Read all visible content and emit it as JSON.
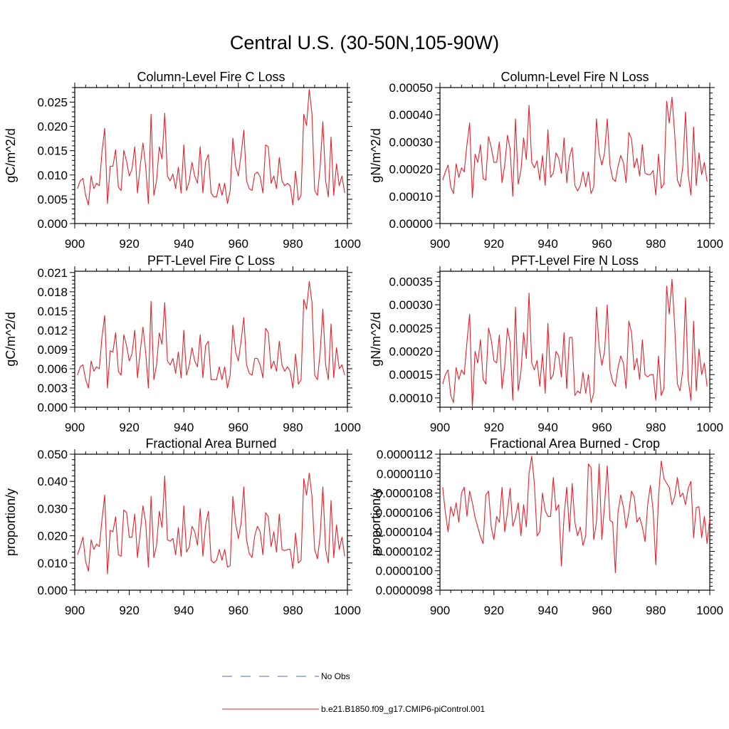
{
  "title": "Central U.S. (30-50N,105-90W)",
  "legend": {
    "entries": [
      {
        "label": "No Obs",
        "color": "#5a6fb3",
        "style": "dashed"
      },
      {
        "label": "b.e21.B1850.f09_g17.CMIP6-piControl.001",
        "color": "#e8202a",
        "style": "solid"
      }
    ]
  },
  "colors": {
    "series": "#e8202a",
    "axis": "#000000"
  },
  "chart_data": [
    {
      "type": "line",
      "title": "Column-Level Fire C Loss",
      "ylabel": "gC/m^2/d",
      "xlim": [
        900,
        1000
      ],
      "ylim": [
        0,
        0.028
      ],
      "xticks": [
        "900",
        "920",
        "940",
        "960",
        "980",
        "1000"
      ],
      "yticks": [
        {
          "v": 0.0,
          "label": "0.000"
        },
        {
          "v": 0.005,
          "label": "0.005"
        },
        {
          "v": 0.01,
          "label": "0.010"
        },
        {
          "v": 0.015,
          "label": "0.015"
        },
        {
          "v": 0.02,
          "label": "0.020"
        },
        {
          "v": 0.025,
          "label": "0.025"
        }
      ],
      "x_start": 901,
      "values": [
        0.0072,
        0.0088,
        0.0093,
        0.0058,
        0.0038,
        0.0098,
        0.0072,
        0.0083,
        0.0078,
        0.0148,
        0.0196,
        0.0041,
        0.0118,
        0.0118,
        0.0152,
        0.0075,
        0.0068,
        0.0151,
        0.0128,
        0.0098,
        0.0112,
        0.0158,
        0.0063,
        0.0118,
        0.0166,
        0.0118,
        0.0041,
        0.0225,
        0.0058,
        0.0088,
        0.0158,
        0.0133,
        0.0227,
        0.0098,
        0.0088,
        0.0102,
        0.0072,
        0.0116,
        0.0063,
        0.0162,
        0.0068,
        0.0088,
        0.0126,
        0.0098,
        0.0083,
        0.0158,
        0.0063,
        0.0128,
        0.0142,
        0.0063,
        0.0055,
        0.0055,
        0.0083,
        0.0058,
        0.0083,
        0.0041,
        0.0068,
        0.0176,
        0.0118,
        0.0098,
        0.0142,
        0.0192,
        0.0088,
        0.0072,
        0.0068,
        0.0102,
        0.0106,
        0.0096,
        0.0063,
        0.0162,
        0.0158,
        0.0083,
        0.0098,
        0.0072,
        0.0136,
        0.0088,
        0.0078,
        0.0083,
        0.0078,
        0.0038,
        0.0108,
        0.0048,
        0.0058,
        0.0225,
        0.0202,
        0.0276,
        0.0226,
        0.0068,
        0.0058,
        0.0118,
        0.021,
        0.0088,
        0.0055,
        0.0178,
        0.0058,
        0.0123,
        0.0078,
        0.0098,
        0.0063
      ]
    },
    {
      "type": "line",
      "title": "Column-Level Fire N Loss",
      "ylabel": "gN/m^2/d",
      "xlim": [
        900,
        1000
      ],
      "ylim": [
        0,
        0.0005
      ],
      "xticks": [
        "900",
        "920",
        "940",
        "960",
        "980",
        "1000"
      ],
      "yticks": [
        {
          "v": 0.0,
          "label": "0.00000"
        },
        {
          "v": 0.0001,
          "label": "0.00010"
        },
        {
          "v": 0.0002,
          "label": "0.00020"
        },
        {
          "v": 0.0003,
          "label": "0.00030"
        },
        {
          "v": 0.0004,
          "label": "0.00040"
        },
        {
          "v": 0.0005,
          "label": "0.00050"
        }
      ],
      "x_start": 901,
      "values": [
        0.00016,
        0.00019,
        0.000215,
        0.000135,
        0.00011,
        0.00022,
        0.00017,
        0.000205,
        0.00019,
        0.00029,
        0.00037,
        9.5e-05,
        0.000255,
        0.000225,
        0.00029,
        0.000165,
        0.00016,
        0.00032,
        0.00028,
        0.000225,
        0.000225,
        0.0003,
        0.00015,
        0.000215,
        0.000325,
        0.000275,
        0.0001,
        0.000385,
        0.000145,
        0.000195,
        0.000315,
        0.000235,
        0.000435,
        0.000225,
        0.000205,
        0.00023,
        0.00016,
        0.00025,
        0.00014,
        0.000345,
        0.00017,
        0.000185,
        0.00026,
        0.00024,
        0.000185,
        0.000315,
        0.00015,
        0.000245,
        0.00028,
        0.00014,
        0.00012,
        0.00014,
        0.00019,
        0.000135,
        0.00019,
        0.00011,
        0.000135,
        0.000385,
        0.00026,
        0.000215,
        0.00026,
        0.000385,
        0.000215,
        0.000165,
        0.000155,
        0.00021,
        0.00025,
        0.000225,
        0.00015,
        0.000335,
        0.00031,
        0.000205,
        0.00024,
        0.000175,
        0.00029,
        0.000185,
        0.00018,
        0.00018,
        0.000195,
        0.000105,
        0.000255,
        0.00013,
        0.000145,
        0.00045,
        0.00037,
        0.000465,
        0.00033,
        0.00016,
        0.000135,
        0.00021,
        0.00041,
        0.00018,
        0.000105,
        0.000355,
        0.00014,
        0.00026,
        0.00018,
        0.000225,
        0.000155
      ]
    },
    {
      "type": "line",
      "title": "PFT-Level Fire C Loss",
      "ylabel": "gC/m^2/d",
      "xlim": [
        900,
        1000
      ],
      "ylim": [
        0,
        0.0212
      ],
      "xticks": [
        "900",
        "920",
        "940",
        "960",
        "980",
        "1000"
      ],
      "yticks": [
        {
          "v": 0.0,
          "label": "0.000"
        },
        {
          "v": 0.003,
          "label": "0.003"
        },
        {
          "v": 0.006,
          "label": "0.006"
        },
        {
          "v": 0.009,
          "label": "0.009"
        },
        {
          "v": 0.012,
          "label": "0.012"
        },
        {
          "v": 0.015,
          "label": "0.015"
        },
        {
          "v": 0.018,
          "label": "0.018"
        },
        {
          "v": 0.021,
          "label": "0.021"
        }
      ],
      "x_start": 901,
      "values": [
        0.005,
        0.0063,
        0.0066,
        0.0043,
        0.003,
        0.0072,
        0.0056,
        0.0063,
        0.006,
        0.011,
        0.0143,
        0.003,
        0.0088,
        0.0086,
        0.0116,
        0.0056,
        0.005,
        0.0113,
        0.0096,
        0.0072,
        0.0083,
        0.012,
        0.0046,
        0.0086,
        0.0125,
        0.0086,
        0.003,
        0.0165,
        0.0043,
        0.0066,
        0.0116,
        0.0098,
        0.0163,
        0.0072,
        0.0066,
        0.0076,
        0.0053,
        0.0086,
        0.0046,
        0.012,
        0.005,
        0.0066,
        0.0093,
        0.0072,
        0.0063,
        0.0113,
        0.0046,
        0.0096,
        0.0103,
        0.0043,
        0.0043,
        0.0043,
        0.0063,
        0.0043,
        0.0063,
        0.003,
        0.005,
        0.0128,
        0.0086,
        0.0072,
        0.0103,
        0.014,
        0.0066,
        0.0053,
        0.005,
        0.0076,
        0.0076,
        0.0066,
        0.0046,
        0.0123,
        0.0116,
        0.006,
        0.0072,
        0.0056,
        0.0103,
        0.0066,
        0.0056,
        0.0063,
        0.0056,
        0.003,
        0.0083,
        0.0036,
        0.0043,
        0.0168,
        0.0153,
        0.0196,
        0.0163,
        0.005,
        0.0043,
        0.0086,
        0.0153,
        0.0066,
        0.0043,
        0.013,
        0.0046,
        0.0093,
        0.006,
        0.0066,
        0.005
      ]
    },
    {
      "type": "line",
      "title": "PFT-Level Fire N Loss",
      "ylabel": "gN/m^2/d",
      "xlim": [
        900,
        1000
      ],
      "ylim": [
        8e-05,
        0.000372
      ],
      "xticks": [
        "900",
        "920",
        "940",
        "960",
        "980",
        "1000"
      ],
      "yticks": [
        {
          "v": 0.0001,
          "label": "0.00010"
        },
        {
          "v": 0.00015,
          "label": "0.00015"
        },
        {
          "v": 0.0002,
          "label": "0.00020"
        },
        {
          "v": 0.00025,
          "label": "0.00025"
        },
        {
          "v": 0.0003,
          "label": "0.00030"
        },
        {
          "v": 0.00035,
          "label": "0.00035"
        }
      ],
      "x_start": 901,
      "values": [
        0.00013,
        0.00015,
        0.00016,
        0.000105,
        9e-05,
        0.000165,
        0.00014,
        0.00016,
        0.00015,
        0.00022,
        0.00028,
        8e-05,
        0.0002,
        0.000175,
        0.000225,
        0.00014,
        0.00013,
        0.00025,
        0.000225,
        0.00018,
        0.000175,
        0.000235,
        0.00012,
        0.00017,
        0.00025,
        0.00022,
        9.5e-05,
        0.000295,
        0.000115,
        0.000155,
        0.00024,
        0.000185,
        0.000325,
        0.000175,
        0.00016,
        0.00018,
        0.000125,
        0.000195,
        0.00011,
        0.00026,
        0.00014,
        0.00015,
        0.0002,
        0.00019,
        0.000145,
        0.00024,
        0.00012,
        0.00023,
        0.00023,
        0.000105,
        0.000115,
        0.00011,
        0.000155,
        0.00011,
        0.00015,
        9e-05,
        0.00011,
        0.000295,
        0.00021,
        0.00017,
        0.0002,
        0.0003,
        0.00016,
        0.000135,
        0.000125,
        0.000165,
        0.00019,
        0.000175,
        0.00012,
        0.000265,
        0.00024,
        0.00016,
        0.000185,
        0.00014,
        0.000225,
        0.00015,
        0.000145,
        0.00015,
        0.00015,
        9.5e-05,
        0.00019,
        0.000105,
        0.00012,
        0.00034,
        0.00028,
        0.000355,
        0.000255,
        0.00013,
        0.000115,
        0.00016,
        0.000315,
        0.00014,
        9.5e-05,
        0.000265,
        0.000115,
        0.000205,
        0.00015,
        0.000175,
        0.000125
      ]
    },
    {
      "type": "line",
      "title": "Fractional Area Burned",
      "ylabel": "proportion/y",
      "xlim": [
        900,
        1000
      ],
      "ylim": [
        0,
        0.05
      ],
      "xticks": [
        "900",
        "920",
        "940",
        "960",
        "980",
        "1000"
      ],
      "yticks": [
        {
          "v": 0.0,
          "label": "0.000"
        },
        {
          "v": 0.01,
          "label": "0.010"
        },
        {
          "v": 0.02,
          "label": "0.020"
        },
        {
          "v": 0.03,
          "label": "0.030"
        },
        {
          "v": 0.04,
          "label": "0.040"
        },
        {
          "v": 0.05,
          "label": "0.050"
        }
      ],
      "x_start": 901,
      "values": [
        0.013,
        0.016,
        0.0195,
        0.0105,
        0.007,
        0.0185,
        0.015,
        0.017,
        0.016,
        0.026,
        0.035,
        0.006,
        0.022,
        0.0215,
        0.027,
        0.013,
        0.0125,
        0.0295,
        0.0285,
        0.0195,
        0.0195,
        0.028,
        0.012,
        0.021,
        0.031,
        0.025,
        0.0085,
        0.0345,
        0.012,
        0.0165,
        0.029,
        0.023,
        0.042,
        0.0185,
        0.018,
        0.019,
        0.013,
        0.023,
        0.0125,
        0.031,
        0.014,
        0.016,
        0.0235,
        0.0215,
        0.0165,
        0.03,
        0.0125,
        0.024,
        0.029,
        0.011,
        0.01,
        0.011,
        0.015,
        0.011,
        0.015,
        0.0085,
        0.009,
        0.0345,
        0.0245,
        0.019,
        0.0245,
        0.038,
        0.0185,
        0.0135,
        0.012,
        0.02,
        0.0235,
        0.0215,
        0.013,
        0.0285,
        0.027,
        0.016,
        0.0215,
        0.014,
        0.028,
        0.015,
        0.0145,
        0.015,
        0.015,
        0.008,
        0.021,
        0.01,
        0.011,
        0.041,
        0.035,
        0.043,
        0.0345,
        0.015,
        0.0115,
        0.02,
        0.038,
        0.015,
        0.01,
        0.033,
        0.012,
        0.024,
        0.015,
        0.0195,
        0.0125
      ]
    },
    {
      "type": "line",
      "title": "Fractional Area Burned - Crop",
      "ylabel": "proportion/y",
      "xlim": [
        900,
        1000
      ],
      "ylim": [
        9.8e-06,
        1.12e-05
      ],
      "xticks": [
        "900",
        "920",
        "940",
        "960",
        "980",
        "1000"
      ],
      "yticks": [
        {
          "v": 9.8e-06,
          "label": "0.0000098"
        },
        {
          "v": 1e-05,
          "label": "0.0000100"
        },
        {
          "v": 1.02e-05,
          "label": "0.0000102"
        },
        {
          "v": 1.04e-05,
          "label": "0.0000104"
        },
        {
          "v": 1.06e-05,
          "label": "0.0000106"
        },
        {
          "v": 1.08e-05,
          "label": "0.0000108"
        },
        {
          "v": 1.1e-05,
          "label": "0.0000110"
        },
        {
          "v": 1.12e-05,
          "label": "0.0000112"
        }
      ],
      "x_start": 901,
      "values": [
        1.086e-05,
        1.06e-05,
        1.04e-05,
        1.066e-05,
        1.056e-05,
        1.07e-05,
        1.05e-05,
        1.08e-05,
        1.086e-05,
        1.056e-05,
        1.082e-05,
        1.07e-05,
        1.055e-05,
        1.045e-05,
        1.035e-05,
        1.028e-05,
        1.078e-05,
        1.082e-05,
        1.045e-05,
        1.032e-05,
        1.056e-05,
        1.05e-05,
        1.086e-05,
        1.04e-05,
        1.06e-05,
        1.085e-05,
        1.046e-05,
        1.055e-05,
        1.07e-05,
        1.036e-05,
        1.068e-05,
        1.045e-05,
        1.1e-05,
        1.118e-05,
        1.09e-05,
        1.036e-05,
        1.04e-05,
        1.08e-05,
        1.062e-05,
        1.056e-05,
        1.056e-05,
        1.096e-05,
        1.062e-05,
        1.068e-05,
        1.005e-05,
        1.056e-05,
        1.086e-05,
        1.04e-05,
        1.09e-05,
        1.05e-05,
        1.036e-05,
        1.045e-05,
        1.026e-05,
        1.036e-05,
        1.11e-05,
        1.106e-05,
        1.032e-05,
        1.05e-05,
        1.11e-05,
        1.032e-05,
        1.068e-05,
        1.108e-05,
        1.052e-05,
        1.05e-05,
        9.98e-06,
        1.06e-05,
        1.078e-05,
        1.066e-05,
        1.044e-05,
        1.06e-05,
        1.082e-05,
        1.076e-05,
        1.05e-05,
        1.055e-05,
        1.045e-05,
        1.03e-05,
        1.068e-05,
        1.088e-05,
        1.062e-05,
        1.006e-05,
        1.076e-05,
        1.113e-05,
        1.095e-05,
        1.09e-05,
        1.086e-05,
        1.068e-05,
        1.076e-05,
        1.096e-05,
        1.076e-05,
        1.08e-05,
        1.068e-05,
        1.085e-05,
        1.092e-05,
        1.034e-05,
        1.065e-05,
        1.066e-05,
        1.034e-05,
        1.056e-05,
        1.028e-05,
        1.054e-05
      ]
    }
  ]
}
